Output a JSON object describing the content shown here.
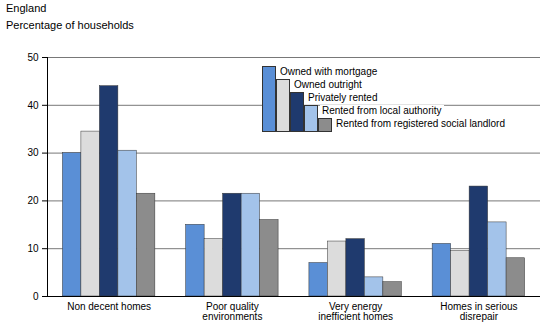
{
  "chart_data": {
    "type": "bar",
    "title": "England",
    "subtitle": "Percentage of households",
    "categories": [
      "Non decent homes",
      "Poor quality environments",
      "Very energy inefficient homes",
      "Homes in serious disrepair"
    ],
    "series": [
      {
        "name": "Owned with mortgage",
        "color": "#5a8fd6",
        "values": [
          30,
          15,
          7,
          11
        ]
      },
      {
        "name": "Owned outright",
        "color": "#dcdcdc",
        "values": [
          34.5,
          12,
          11.5,
          9.5
        ]
      },
      {
        "name": "Privately rented",
        "color": "#1f3a6e",
        "values": [
          44,
          21.5,
          12,
          23
        ]
      },
      {
        "name": "Rented from local authority",
        "color": "#a3c3ea",
        "values": [
          30.5,
          21.5,
          4,
          15.5
        ]
      },
      {
        "name": "Rented from registered social landlord",
        "color": "#8c8c8c",
        "values": [
          21.5,
          16,
          3,
          8
        ]
      }
    ],
    "ylim": [
      0,
      50
    ],
    "yticks": [
      0,
      10,
      20,
      30,
      40,
      50
    ],
    "grid": true,
    "legend": "top-right"
  }
}
